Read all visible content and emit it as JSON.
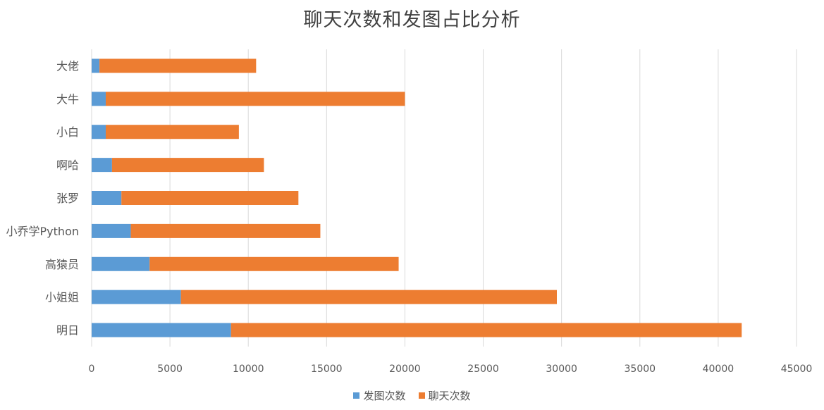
{
  "colors": {
    "series_1": "#5b9bd5",
    "series_2": "#ed7d31",
    "grid": "#d9d9d9",
    "text": "#595959"
  },
  "chart_data": {
    "type": "bar",
    "orientation": "horizontal",
    "stacked": true,
    "title": "聊天次数和发图占比分析",
    "categories": [
      "大佬",
      "大牛",
      "小白",
      "啊哈",
      "张罗",
      "小乔学Python",
      "高猿员",
      "小姐姐",
      "明日"
    ],
    "series": [
      {
        "name": "发图次数",
        "values": [
          500,
          900,
          900,
          1300,
          1900,
          2500,
          3700,
          5700,
          8900
        ]
      },
      {
        "name": "聊天次数",
        "values": [
          10000,
          19100,
          8500,
          9700,
          11300,
          12100,
          15900,
          24000,
          32600
        ]
      }
    ],
    "xlim": [
      0,
      45000
    ],
    "x_ticks": [
      "0",
      "5000",
      "10000",
      "15000",
      "20000",
      "25000",
      "30000",
      "35000",
      "40000",
      "45000"
    ],
    "grid": "vertical",
    "legend": "bottom"
  }
}
